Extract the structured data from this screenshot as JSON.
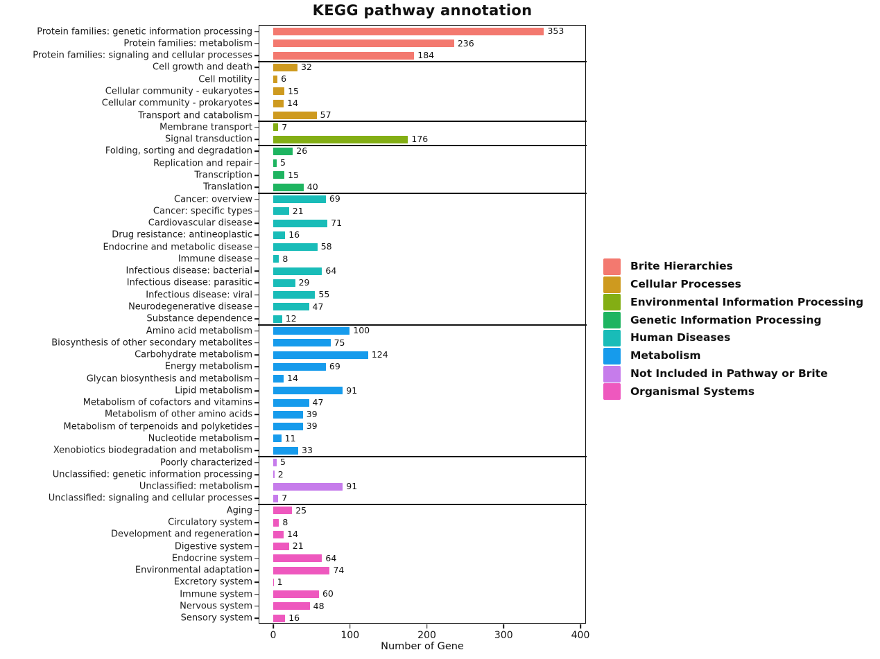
{
  "title": "KEGG pathway annotation",
  "chart_data": {
    "type": "bar",
    "orientation": "horizontal",
    "title": "KEGG pathway annotation",
    "xlabel": "Number of Gene",
    "xlim": [
      0,
      400
    ],
    "xticks": [
      0,
      100,
      200,
      300,
      400
    ],
    "grid": false,
    "legend_position": "right-outside",
    "value_labels": "end-of-bar",
    "groups": [
      {
        "name": "Brite Hierarchies",
        "color": "#F3796F",
        "items": [
          {
            "label": "Protein families: genetic information processing",
            "value": 353
          },
          {
            "label": "Protein families: metabolism",
            "value": 236
          },
          {
            "label": "Protein families: signaling and cellular processes",
            "value": 184
          }
        ]
      },
      {
        "name": "Cellular Processes",
        "color": "#CE9A1F",
        "items": [
          {
            "label": "Cell growth and death",
            "value": 32
          },
          {
            "label": "Cell motility",
            "value": 6
          },
          {
            "label": "Cellular community - eukaryotes",
            "value": 15
          },
          {
            "label": "Cellular community - prokaryotes",
            "value": 14
          },
          {
            "label": "Transport and catabolism",
            "value": 57
          }
        ]
      },
      {
        "name": "Environmental Information Processing",
        "color": "#83AE14",
        "items": [
          {
            "label": "Membrane transport",
            "value": 7
          },
          {
            "label": "Signal transduction",
            "value": 176
          }
        ]
      },
      {
        "name": "Genetic Information Processing",
        "color": "#1EB460",
        "items": [
          {
            "label": "Folding, sorting and degradation",
            "value": 26
          },
          {
            "label": "Replication and repair",
            "value": 5
          },
          {
            "label": "Transcription",
            "value": 15
          },
          {
            "label": "Translation",
            "value": 40
          }
        ]
      },
      {
        "name": "Human Diseases",
        "color": "#19BCB8",
        "items": [
          {
            "label": "Cancer: overview",
            "value": 69
          },
          {
            "label": "Cancer: specific types",
            "value": 21
          },
          {
            "label": "Cardiovascular disease",
            "value": 71
          },
          {
            "label": "Drug resistance: antineoplastic",
            "value": 16
          },
          {
            "label": "Endocrine and metabolic disease",
            "value": 58
          },
          {
            "label": "Immune disease",
            "value": 8
          },
          {
            "label": "Infectious disease: bacterial",
            "value": 64
          },
          {
            "label": "Infectious disease: parasitic",
            "value": 29
          },
          {
            "label": "Infectious disease: viral",
            "value": 55
          },
          {
            "label": "Neurodegenerative disease",
            "value": 47
          },
          {
            "label": "Substance dependence",
            "value": 12
          }
        ]
      },
      {
        "name": "Metabolism",
        "color": "#169BEC",
        "items": [
          {
            "label": "Amino acid metabolism",
            "value": 100
          },
          {
            "label": "Biosynthesis of other secondary metabolites",
            "value": 75
          },
          {
            "label": "Carbohydrate metabolism",
            "value": 124
          },
          {
            "label": "Energy metabolism",
            "value": 69
          },
          {
            "label": "Glycan biosynthesis and metabolism",
            "value": 14
          },
          {
            "label": "Lipid metabolism",
            "value": 91
          },
          {
            "label": "Metabolism of cofactors and vitamins",
            "value": 47
          },
          {
            "label": "Metabolism of other amino acids",
            "value": 39
          },
          {
            "label": "Metabolism of terpenoids and polyketides",
            "value": 39
          },
          {
            "label": "Nucleotide metabolism",
            "value": 11
          },
          {
            "label": "Xenobiotics biodegradation and metabolism",
            "value": 33
          }
        ]
      },
      {
        "name": "Not Included in Pathway or Brite",
        "color": "#C67CEB",
        "items": [
          {
            "label": "Poorly characterized",
            "value": 5
          },
          {
            "label": "Unclassified: genetic information processing",
            "value": 2
          },
          {
            "label": "Unclassified: metabolism",
            "value": 91
          },
          {
            "label": "Unclassified: signaling and cellular processes",
            "value": 7
          }
        ]
      },
      {
        "name": "Organismal Systems",
        "color": "#EE58BE",
        "items": [
          {
            "label": "Aging",
            "value": 25
          },
          {
            "label": "Circulatory system",
            "value": 8
          },
          {
            "label": "Development and regeneration",
            "value": 14
          },
          {
            "label": "Digestive system",
            "value": 21
          },
          {
            "label": "Endocrine system",
            "value": 64
          },
          {
            "label": "Environmental adaptation",
            "value": 74
          },
          {
            "label": "Excretory system",
            "value": 1
          },
          {
            "label": "Immune system",
            "value": 60
          },
          {
            "label": "Nervous system",
            "value": 48
          },
          {
            "label": "Sensory system",
            "value": 16
          }
        ]
      }
    ]
  }
}
